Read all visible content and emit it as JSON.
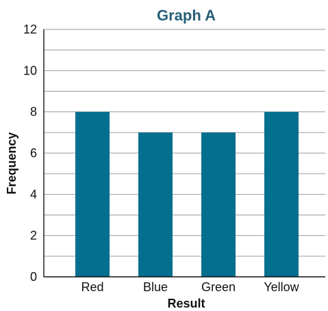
{
  "chart_data": {
    "type": "bar",
    "title": "Graph A",
    "xlabel": "Result",
    "ylabel": "Frequency",
    "categories": [
      "Red",
      "Blue",
      "Green",
      "Yellow"
    ],
    "values": [
      8,
      7,
      7,
      8
    ],
    "ylim": [
      0,
      12
    ],
    "y_major_ticks": [
      0,
      2,
      4,
      6,
      8,
      10,
      12
    ],
    "y_grid_step": 1,
    "grid": true,
    "bar_color": "#046f8e",
    "title_color": "#275e78"
  }
}
